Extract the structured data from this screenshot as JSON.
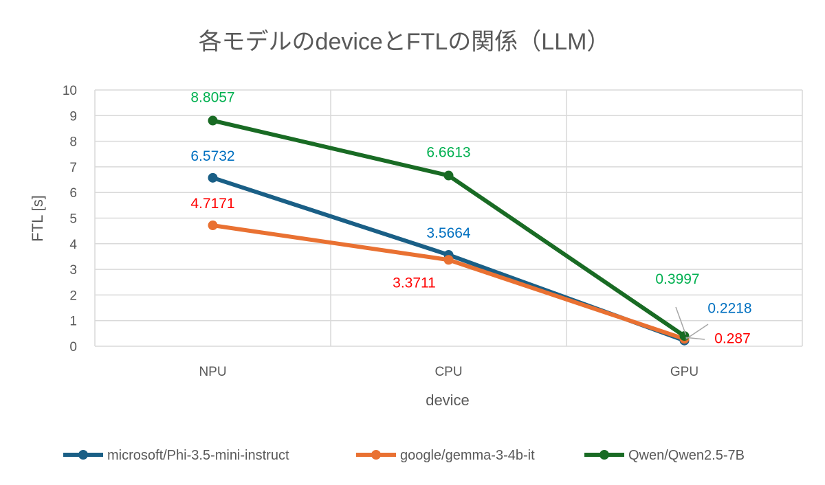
{
  "chart_data": {
    "type": "line",
    "title": "各モデルのdeviceとFTLの関係（LLM）",
    "xlabel": "device",
    "ylabel": "FTL [s]",
    "categories": [
      "NPU",
      "CPU",
      "GPU"
    ],
    "ylim": [
      0,
      10
    ],
    "yticks": [
      "0",
      "1",
      "2",
      "3",
      "4",
      "5",
      "6",
      "7",
      "8",
      "9",
      "10"
    ],
    "grid": true,
    "legend": "bottom",
    "series": [
      {
        "name": "microsoft/Phi-3.5-mini-instruct",
        "values": [
          6.5732,
          3.5664,
          0.2218
        ],
        "labels": [
          "6.5732",
          "3.5664",
          "0.2218"
        ],
        "color": "#1A5F86",
        "label_color": "#0070C0"
      },
      {
        "name": "google/gemma-3-4b-it",
        "values": [
          4.7171,
          3.3711,
          0.287
        ],
        "labels": [
          "4.7171",
          "3.3711",
          "0.287"
        ],
        "color": "#E97132",
        "label_color": "#FF0000"
      },
      {
        "name": "Qwen/Qwen2.5-7B",
        "values": [
          8.8057,
          6.6613,
          0.3997
        ],
        "labels": [
          "8.8057",
          "6.6613",
          "0.3997"
        ],
        "color": "#196B24",
        "label_color": "#00B050"
      }
    ]
  }
}
